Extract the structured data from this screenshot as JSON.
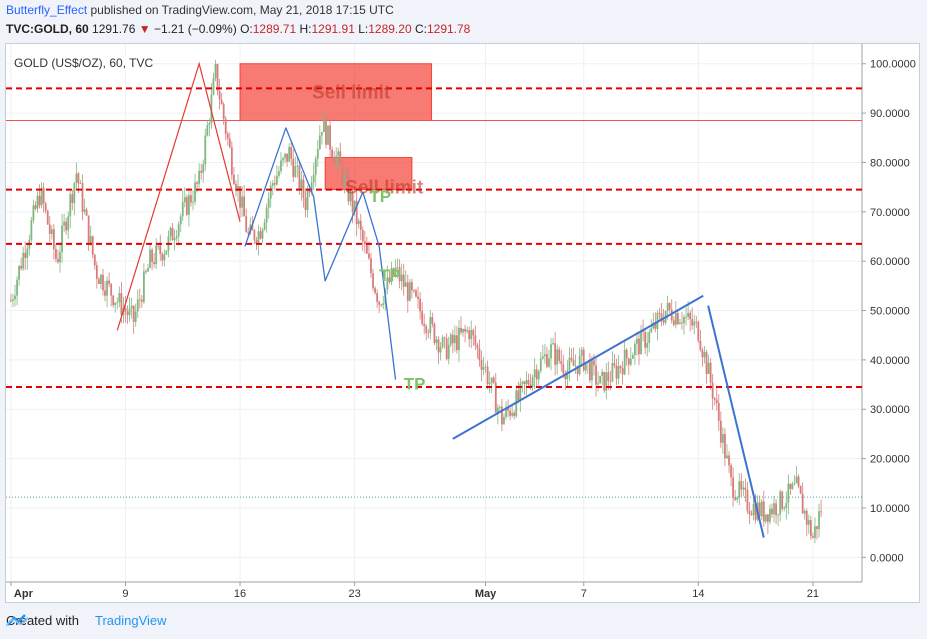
{
  "header": {
    "author": "Butterfly_Effect",
    "published_text": " published on TradingView.com, May 21, 2018 17:15 UTC",
    "symbol_line": "TVC:GOLD, 60",
    "last": "1291.76",
    "change": "−1.21 (−0.09%)",
    "o_label": "O:",
    "o": "1289.71",
    "h_label": "H:",
    "h": "1291.91",
    "l_label": "L:",
    "l": "1289.20",
    "c_label": "C:",
    "c": "1291.78"
  },
  "chart_title": "GOLD (US$/OZ), 60, TVC",
  "footer": {
    "created_with": "Created with",
    "brand": "TradingView"
  },
  "colors": {
    "up": "#4caf50",
    "down": "#e53935",
    "level": "#e00000",
    "blue": "#3b73d1",
    "zone": "#f44336",
    "tp": "#7cc36b"
  },
  "chart_data": {
    "type": "candlestick",
    "title": "GOLD (US$/OZ), 60, TVC",
    "y_axis_ticks": [
      "100.0000",
      "90.0000",
      "80.0000",
      "70.0000",
      "60.0000",
      "50.0000",
      "40.0000",
      "30.0000",
      "20.0000",
      "10.0000",
      "0.0000"
    ],
    "ylim": [
      -5,
      104
    ],
    "x_axis_ticks": [
      "Apr",
      "9",
      "16",
      "23",
      "May",
      "7",
      "14",
      "21"
    ],
    "x_tick_positions": [
      0,
      7,
      14,
      21,
      29,
      35,
      42,
      49
    ],
    "xlim": [
      -0.3,
      52
    ],
    "price_path": [
      [
        0,
        52
      ],
      [
        0.8,
        62
      ],
      [
        1.8,
        74
      ],
      [
        2.8,
        60
      ],
      [
        4,
        78
      ],
      [
        5.2,
        58
      ],
      [
        6.5,
        52
      ],
      [
        7.5,
        48
      ],
      [
        8.5,
        60
      ],
      [
        9.5,
        63
      ],
      [
        10.5,
        70
      ],
      [
        11.5,
        76
      ],
      [
        12.5,
        98
      ],
      [
        13.5,
        80
      ],
      [
        14.5,
        65
      ],
      [
        15.2,
        66
      ],
      [
        16,
        76
      ],
      [
        17,
        82
      ],
      [
        18,
        72
      ],
      [
        19,
        88
      ],
      [
        20,
        80
      ],
      [
        21,
        70
      ],
      [
        21.8,
        60
      ],
      [
        22.5,
        52
      ],
      [
        23.5,
        58
      ],
      [
        25,
        50
      ],
      [
        26.5,
        42
      ],
      [
        28,
        46
      ],
      [
        29,
        38
      ],
      [
        30,
        28
      ],
      [
        31,
        32
      ],
      [
        32,
        38
      ],
      [
        33,
        42
      ],
      [
        34,
        38
      ],
      [
        35,
        40
      ],
      [
        36,
        35
      ],
      [
        37,
        38
      ],
      [
        38,
        42
      ],
      [
        39,
        45
      ],
      [
        40,
        50
      ],
      [
        41,
        49
      ],
      [
        42,
        46
      ],
      [
        43,
        32
      ],
      [
        44,
        15
      ],
      [
        45,
        11
      ],
      [
        46,
        9
      ],
      [
        47,
        11
      ],
      [
        48,
        14
      ],
      [
        49,
        4
      ],
      [
        49.6,
        11
      ]
    ],
    "last_value": 12.2,
    "levels": [
      95,
      74.5,
      63.5,
      34.5
    ],
    "thin_level": 88.5,
    "zones": [
      {
        "label": "Sell limit",
        "x0": 14,
        "x1": 25.7,
        "y0": 88.5,
        "y1": 100
      },
      {
        "label": "Sell limit",
        "x0": 19.2,
        "x1": 24.5,
        "y0": 74.5,
        "y1": 81
      }
    ],
    "red_lines": [
      [
        [
          6.5,
          46
        ],
        [
          11.5,
          100
        ],
        [
          14,
          68
        ]
      ]
    ],
    "blue_lines": [
      [
        [
          14.3,
          63
        ],
        [
          16.8,
          87
        ],
        [
          18.5,
          73
        ],
        [
          19.2,
          56
        ],
        [
          21.5,
          74
        ],
        [
          22.5,
          63
        ],
        [
          23.5,
          36
        ]
      ],
      [
        [
          27,
          24
        ],
        [
          42.3,
          53
        ]
      ],
      [
        [
          42.6,
          51
        ],
        [
          46,
          4
        ]
      ]
    ],
    "tp_labels": [
      {
        "text": "TP",
        "x": 21.9,
        "y": 72
      },
      {
        "text": "TP",
        "x": 22.5,
        "y": 56
      },
      {
        "text": "TP",
        "x": 24,
        "y": 34
      }
    ]
  }
}
